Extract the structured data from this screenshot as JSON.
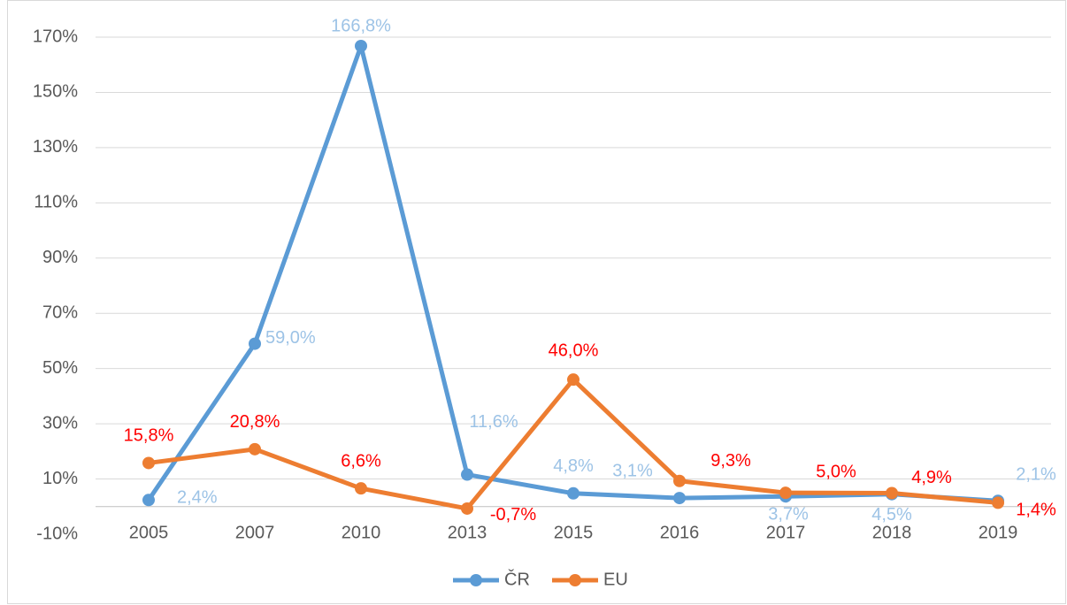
{
  "chart_data": {
    "type": "line",
    "categories": [
      "2005",
      "2007",
      "2010",
      "2013",
      "2015",
      "2016",
      "2017",
      "2018",
      "2019"
    ],
    "series": [
      {
        "name": "ČR",
        "color": "#5b9bd5",
        "label_color": "#9dc3e6",
        "values": [
          2.4,
          59.0,
          166.8,
          11.6,
          4.8,
          3.1,
          3.7,
          4.5,
          2.1
        ],
        "value_labels": [
          "2,4%",
          "59,0%",
          "166,8%",
          "11,6%",
          "4,8%",
          "3,1%",
          "3,7%",
          "4,5%",
          "2,1%"
        ]
      },
      {
        "name": "EU",
        "color": "#ed7d31",
        "label_color": "#ff0000",
        "values": [
          15.8,
          20.8,
          6.6,
          -0.7,
          46.0,
          9.3,
          5.0,
          4.9,
          1.4
        ],
        "value_labels": [
          "15,8%",
          "20,8%",
          "6,6%",
          "-0,7%",
          "46,0%",
          "9,3%",
          "5,0%",
          "4,9%",
          "1,4%"
        ]
      }
    ],
    "ylim": [
      -10,
      170
    ],
    "yticks": [
      {
        "value": -10,
        "label": "-10%"
      },
      {
        "value": 10,
        "label": "10%"
      },
      {
        "value": 30,
        "label": "30%"
      },
      {
        "value": 50,
        "label": "50%"
      },
      {
        "value": 70,
        "label": "70%"
      },
      {
        "value": 90,
        "label": "90%"
      },
      {
        "value": 110,
        "label": "110%"
      },
      {
        "value": 130,
        "label": "130%"
      },
      {
        "value": 150,
        "label": "150%"
      },
      {
        "value": 170,
        "label": "170%"
      }
    ],
    "grid": true,
    "legend": "bottom"
  }
}
